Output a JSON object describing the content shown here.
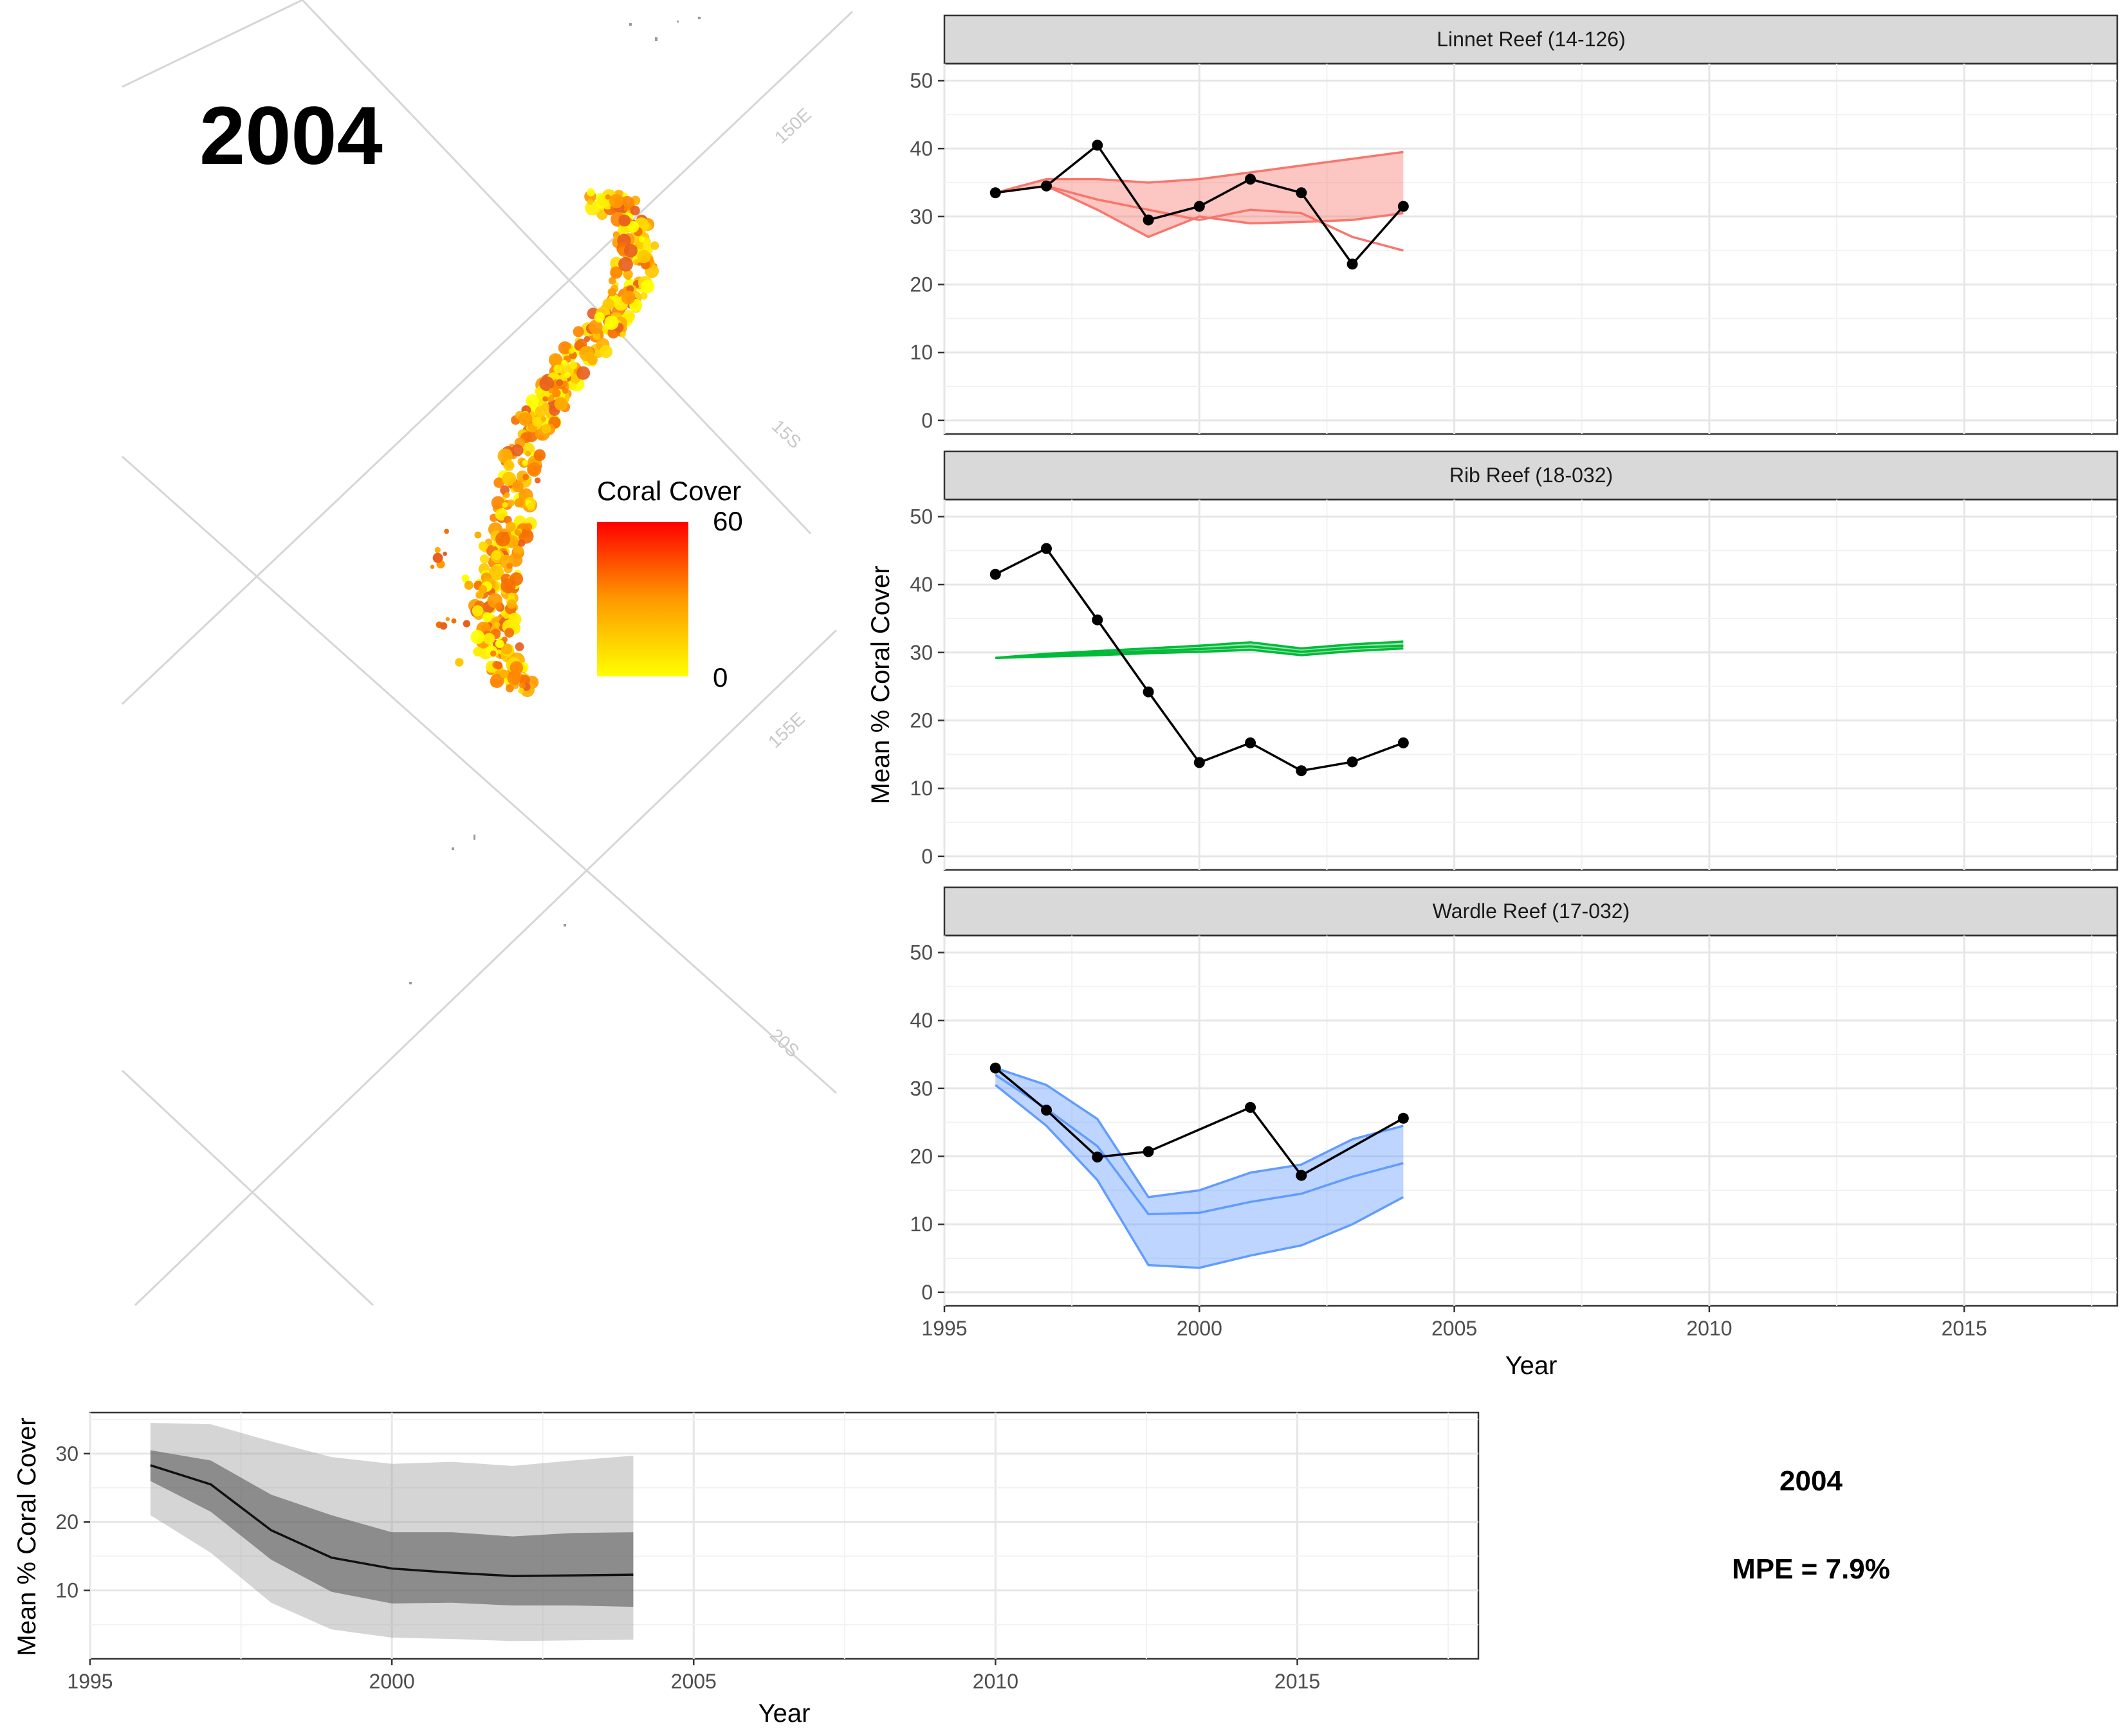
{
  "map": {
    "year_label": "2004",
    "graticule_labels": [
      "150E",
      "15S",
      "155E",
      "20S"
    ],
    "legend": {
      "title": "Coral Cover",
      "max_label": "60",
      "min_label": "0",
      "color_low": "#FFFF00",
      "color_high": "#FF0000"
    }
  },
  "info": {
    "year": "2004",
    "mpe": "MPE = 7.9%"
  },
  "chart_data": [
    {
      "type": "line",
      "title": "Linnet Reef (14-126)",
      "ylabel": "Mean % Coral Cover",
      "xlabel": "Year",
      "xlim": [
        1995,
        2018
      ],
      "ylim": [
        -2,
        52.5
      ],
      "x_ticks": [
        1995,
        2000,
        2005,
        2010,
        2015
      ],
      "y_ticks": [
        0,
        10,
        20,
        30,
        40,
        50
      ],
      "color": "#F8766D",
      "observed": {
        "x": [
          1996,
          1997,
          1998,
          1999,
          2000,
          2001,
          2002,
          2003,
          2004
        ],
        "y": [
          33.5,
          34.5,
          40.5,
          29.5,
          31.5,
          35.5,
          33.5,
          23.0,
          31.5
        ]
      },
      "predicted": {
        "x": [
          1996,
          1997,
          1998,
          1999,
          2000,
          2001,
          2002,
          2003,
          2004
        ],
        "median": [
          33.5,
          34.5,
          32.5,
          31.0,
          29.5,
          31.0,
          30.5,
          27.0,
          25.0
        ],
        "lower": [
          33.5,
          34.5,
          31.0,
          27.0,
          30.0,
          29.0,
          29.2,
          29.5,
          30.5
        ],
        "upper": [
          33.5,
          35.5,
          35.5,
          35.0,
          35.5,
          36.5,
          37.5,
          38.5,
          39.5
        ]
      }
    },
    {
      "type": "line",
      "title": "Rib Reef (18-032)",
      "ylabel": "Mean % Coral Cover",
      "xlabel": "Year",
      "xlim": [
        1995,
        2018
      ],
      "ylim": [
        -2,
        52.5
      ],
      "x_ticks": [
        1995,
        2000,
        2005,
        2010,
        2015
      ],
      "y_ticks": [
        0,
        10,
        20,
        30,
        40,
        50
      ],
      "color": "#00BA38",
      "observed": {
        "x": [
          1996,
          1997,
          1998,
          1999,
          2000,
          2001,
          2002,
          2003,
          2004
        ],
        "y": [
          41.5,
          45.3,
          34.8,
          24.2,
          13.8,
          16.7,
          12.6,
          13.9,
          16.7
        ]
      },
      "predicted": {
        "x": [
          1996,
          1997,
          1998,
          1999,
          2000,
          2001,
          2002,
          2003,
          2004
        ],
        "median": [
          29.2,
          29.6,
          29.9,
          30.2,
          30.5,
          30.9,
          30.1,
          30.7,
          31.0
        ],
        "lower": [
          29.2,
          29.4,
          29.6,
          29.9,
          30.1,
          30.4,
          29.6,
          30.2,
          30.6
        ],
        "upper": [
          29.2,
          29.8,
          30.2,
          30.6,
          31.0,
          31.5,
          30.6,
          31.2,
          31.6
        ]
      }
    },
    {
      "type": "line",
      "title": "Wardle Reef (17-032)",
      "ylabel": "Mean % Coral Cover",
      "xlabel": "Year",
      "xlim": [
        1995,
        2018
      ],
      "ylim": [
        -2,
        52.5
      ],
      "x_ticks": [
        1995,
        2000,
        2005,
        2010,
        2015
      ],
      "y_ticks": [
        0,
        10,
        20,
        30,
        40,
        50
      ],
      "color": "#619CFF",
      "observed": {
        "x": [
          1996,
          1997,
          1998,
          1999,
          2001,
          2002,
          2004
        ],
        "y": [
          33.0,
          26.8,
          19.9,
          20.7,
          27.2,
          17.2,
          25.6
        ]
      },
      "predicted": {
        "x": [
          1996,
          1997,
          1998,
          1999,
          2000,
          2001,
          2002,
          2003,
          2004
        ],
        "median": [
          32.0,
          27.0,
          21.5,
          11.5,
          11.7,
          13.3,
          14.5,
          17.0,
          19.0
        ],
        "lower": [
          30.5,
          24.5,
          16.5,
          4.0,
          3.6,
          5.4,
          6.9,
          10.0,
          14.0
        ],
        "upper": [
          33.0,
          30.5,
          25.5,
          14.0,
          15.0,
          17.6,
          18.8,
          22.5,
          24.5
        ]
      }
    },
    {
      "type": "area",
      "title": "",
      "ylabel": "Mean % Coral Cover",
      "xlabel": "Year",
      "xlim": [
        1995,
        2018
      ],
      "ylim": [
        0,
        36
      ],
      "x_ticks": [
        1995,
        2000,
        2005,
        2010,
        2015
      ],
      "y_ticks": [
        10,
        20,
        30
      ],
      "x": [
        1996,
        1997,
        1998,
        1999,
        2000,
        2001,
        2002,
        2003,
        2004
      ],
      "median": [
        28.3,
        25.5,
        18.8,
        14.8,
        13.2,
        12.6,
        12.1,
        12.2,
        12.3
      ],
      "inner_lower": [
        26.0,
        21.5,
        14.5,
        9.8,
        8.1,
        8.2,
        7.8,
        7.8,
        7.6
      ],
      "inner_upper": [
        30.5,
        29.0,
        24.0,
        21.0,
        18.5,
        18.5,
        17.9,
        18.4,
        18.5
      ],
      "outer_lower": [
        21.0,
        15.5,
        8.2,
        4.3,
        3.1,
        2.9,
        2.6,
        2.7,
        2.8
      ],
      "outer_upper": [
        34.5,
        34.3,
        31.8,
        29.5,
        28.5,
        28.8,
        28.2,
        29.0,
        29.7
      ]
    }
  ]
}
